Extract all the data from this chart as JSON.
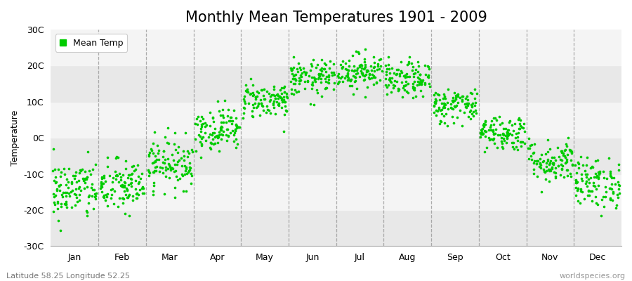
{
  "title": "Monthly Mean Temperatures 1901 - 2009",
  "ylabel": "Temperature",
  "ylim": [
    -30,
    30
  ],
  "yticks": [
    -30,
    -20,
    -10,
    0,
    10,
    20,
    30
  ],
  "ytick_labels": [
    "-30C",
    "-20C",
    "-10C",
    "0C",
    "10C",
    "20C",
    "30C"
  ],
  "months": [
    "Jan",
    "Feb",
    "Mar",
    "Apr",
    "May",
    "Jun",
    "Jul",
    "Aug",
    "Sep",
    "Oct",
    "Nov",
    "Dec"
  ],
  "month_means": [
    -14.5,
    -13.5,
    -7.0,
    2.5,
    10.5,
    16.5,
    18.5,
    16.0,
    9.0,
    1.5,
    -6.5,
    -12.5
  ],
  "month_stds": [
    4.2,
    3.8,
    3.5,
    3.0,
    2.5,
    2.5,
    2.5,
    2.5,
    2.5,
    2.5,
    3.0,
    3.5
  ],
  "n_years": 109,
  "dot_color": "#00CC00",
  "dot_size": 7,
  "background_color": "#FFFFFF",
  "band_color_dark": "#E8E8E8",
  "band_color_light": "#F4F4F4",
  "legend_label": "Mean Temp",
  "footer_left": "Latitude 58.25 Longitude 52.25",
  "footer_right": "worldspecies.org",
  "dashed_line_color": "#999999",
  "title_fontsize": 15,
  "axis_label_fontsize": 9,
  "tick_fontsize": 9,
  "footer_fontsize": 8
}
